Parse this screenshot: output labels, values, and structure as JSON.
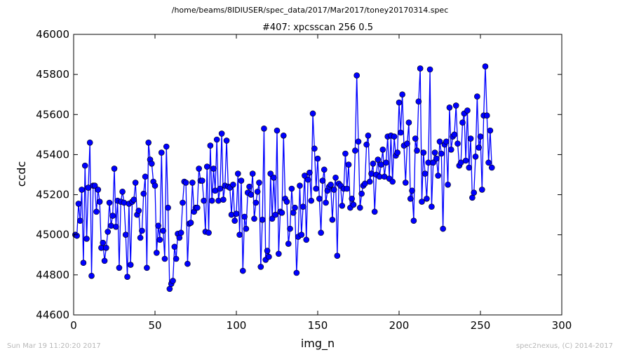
{
  "suptitle": "/home/beams/8IDIUSER/spec_data/2017/Mar2017/toney20170314.spec",
  "footer": {
    "left": "Sun Mar 19 11:20:20 2017",
    "right": "spec2nexus, (C) 2014-2017"
  },
  "chart_data": {
    "type": "line",
    "title": "#407: xpcsscan 256 0.5",
    "xlabel": "img_n",
    "ylabel": "ccdc",
    "xlim": [
      0,
      300
    ],
    "ylim": [
      44600,
      46000
    ],
    "xticks": [
      0,
      50,
      100,
      150,
      200,
      250,
      300
    ],
    "yticks": [
      44600,
      44800,
      45000,
      45200,
      45400,
      45600,
      45800,
      46000
    ],
    "grid": false,
    "legend": "none",
    "marker": "circle",
    "color": "#0000ff",
    "x_start": 1,
    "series": [
      {
        "values": [
          45000,
          44995,
          45155,
          45070,
          45225,
          44860,
          45345,
          44980,
          45235,
          45460,
          44795,
          45245,
          45245,
          45115,
          45225,
          45165,
          44935,
          44960,
          44870,
          44935,
          45015,
          45160,
          45045,
          45095,
          45330,
          45040,
          45170,
          44835,
          45165,
          45215,
          45160,
          45000,
          44790,
          45155,
          44850,
          45165,
          45175,
          45260,
          45100,
          45120,
          44985,
          45020,
          45205,
          45290,
          44835,
          45460,
          45375,
          45355,
          45265,
          45245,
          44910,
          45045,
          44975,
          45410,
          45020,
          44880,
          45440,
          45135,
          44730,
          44755,
          44770,
          44940,
          44880,
          45005,
          44985,
          45010,
          45160,
          45265,
          45260,
          44855,
          45055,
          45060,
          45260,
          45115,
          45135,
          45135,
          45330,
          45270,
          45270,
          45170,
          45015,
          45340,
          45010,
          45445,
          45170,
          45330,
          45220,
          45475,
          45170,
          45230,
          45505,
          45175,
          45245,
          45470,
          45240,
          45235,
          45100,
          45250,
          45070,
          45105,
          45305,
          45000,
          45270,
          44820,
          45090,
          45030,
          45210,
          45240,
          45200,
          45305,
          45080,
          45160,
          45215,
          45260,
          44840,
          45075,
          45530,
          44875,
          44920,
          44890,
          45305,
          45080,
          45285,
          45100,
          45520,
          44905,
          45115,
          45110,
          45495,
          45180,
          45165,
          44955,
          45030,
          45230,
          45110,
          45135,
          44810,
          44990,
          45245,
          45000,
          45140,
          45295,
          44975,
          45275,
          45310,
          45170,
          45605,
          45430,
          45230,
          45380,
          45180,
          45010,
          45270,
          45325,
          45160,
          45220,
          45240,
          45250,
          45075,
          45225,
          45285,
          44895,
          45255,
          45245,
          45145,
          45230,
          45405,
          45230,
          45350,
          45135,
          45180,
          45150,
          45420,
          45795,
          45465,
          45135,
          45205,
          45245,
          45255,
          45450,
          45495,
          45265,
          45305,
          45355,
          45115,
          45300,
          45375,
          45290,
          45350,
          45425,
          45290,
          45360,
          45490,
          45280,
          45495,
          45265,
          45490,
          45395,
          45410,
          45660,
          45510,
          45700,
          45445,
          45260,
          45455,
          45560,
          45180,
          45220,
          45070,
          45480,
          45420,
          45665,
          45830,
          45165,
          45410,
          45305,
          45180,
          45360,
          45825,
          45140,
          45360,
          45410,
          45380,
          45295,
          45465,
          45405,
          45030,
          45450,
          45465,
          45250,
          45635,
          45425,
          45490,
          45500,
          45645,
          45455,
          45345,
          45360,
          45560,
          45605,
          45370,
          45620,
          45335,
          45480,
          45185,
          45210,
          45390,
          45690,
          45435,
          45490,
          45225,
          45595,
          45840,
          45595,
          45360,
          45520,
          45335
        ]
      }
    ]
  }
}
